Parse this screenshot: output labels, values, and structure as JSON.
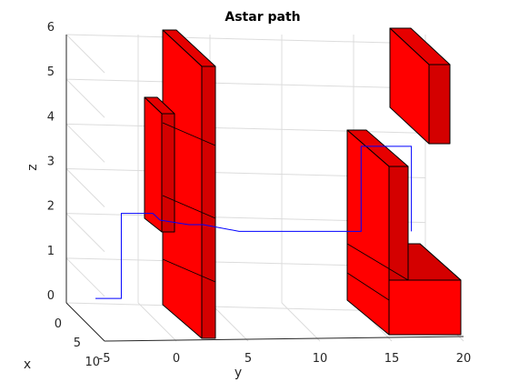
{
  "chart_data": {
    "type": "3d-line",
    "title": "Astar path",
    "xlabel": "x",
    "ylabel": "y",
    "zlabel": "z",
    "xlim": [
      0,
      10
    ],
    "ylim": [
      -5,
      20
    ],
    "zlim": [
      0,
      6
    ],
    "x_ticks": [
      "0",
      "5",
      "10"
    ],
    "y_ticks": [
      "-5",
      "0",
      "5",
      "10",
      "15",
      "20"
    ],
    "z_ticks": [
      "0",
      "1",
      "2",
      "3",
      "4",
      "5",
      "6"
    ],
    "grid": true,
    "path_color": "#0000ff",
    "obstacle_color": "#ff0000",
    "path": [
      {
        "y": -5.0,
        "z": 0.1
      },
      {
        "y": -3.2,
        "z": 0.1
      },
      {
        "y": -3.2,
        "z": 2.0
      },
      {
        "y": -1.0,
        "z": 2.0
      },
      {
        "y": -0.5,
        "z": 1.85
      },
      {
        "y": 1.5,
        "z": 1.75
      },
      {
        "y": 2.5,
        "z": 1.75
      },
      {
        "y": 5.0,
        "z": 1.6
      },
      {
        "y": 13.5,
        "z": 1.6
      },
      {
        "y": 13.5,
        "z": 3.5
      },
      {
        "y": 17.0,
        "z": 3.5
      },
      {
        "y": 17.0,
        "z": 1.6
      }
    ]
  }
}
